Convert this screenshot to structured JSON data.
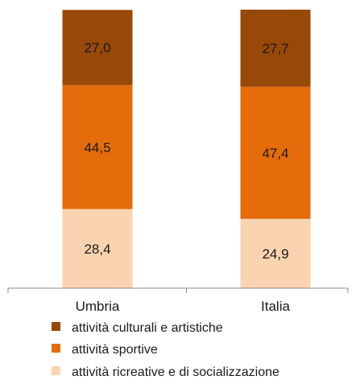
{
  "chart_data": {
    "type": "bar",
    "stacked": true,
    "normalized": true,
    "categories": [
      "Umbria",
      "Italia"
    ],
    "series": [
      {
        "name": "attività ricreative e di socializzazione",
        "values": [
          28.4,
          24.9
        ],
        "labels": [
          "28,4",
          "24,9"
        ],
        "color": "#fad3b0"
      },
      {
        "name": "attività sportive",
        "values": [
          44.5,
          47.4
        ],
        "labels": [
          "44,5",
          "47,4"
        ],
        "color": "#e46c0a"
      },
      {
        "name": "attività culturali e artistiche",
        "values": [
          27.0,
          27.7
        ],
        "labels": [
          "27,0",
          "27,7"
        ],
        "color": "#984807"
      }
    ],
    "legend_order": [
      2,
      1,
      0
    ],
    "legend_position": "bottom",
    "ylim": [
      0,
      100
    ],
    "grid": false,
    "title": "",
    "xlabel": "",
    "ylabel": ""
  }
}
